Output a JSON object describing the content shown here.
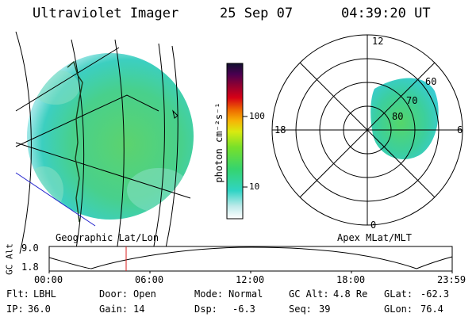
{
  "header": {
    "instrument": "Ultraviolet Imager",
    "date": "25 Sep 07",
    "time": "04:39:20 UT"
  },
  "left_panel": {
    "caption": "Geographic Lat/Lon"
  },
  "right_panel": {
    "caption": "Apex MLat/MLT",
    "mlt_labels": {
      "top": "12",
      "left": "18",
      "right": "6",
      "bottom": "0"
    },
    "lat_labels": [
      "60",
      "70",
      "80"
    ]
  },
  "colorbar": {
    "unit_label": "photon cm⁻²s⁻¹",
    "ticks": [
      "100",
      "10"
    ]
  },
  "altitude_plot": {
    "ylabel": "GC Alt",
    "y_ticks": [
      "9.0",
      "1.8"
    ],
    "x_ticks": [
      "00:00",
      "06:00",
      "12:00",
      "18:00",
      "23:59"
    ],
    "marker_color": "#d81c1c"
  },
  "status": {
    "row1": [
      {
        "label": "Flt:",
        "value": "LBHL"
      },
      {
        "label": "Door:",
        "value": "Open"
      },
      {
        "label": "Mode:",
        "value": "Normal"
      },
      {
        "label": "GC Alt:",
        "value": "4.8 Re"
      },
      {
        "label": "GLat:",
        "value": "-62.3"
      }
    ],
    "row2": [
      {
        "label": "IP:",
        "value": "36.0"
      },
      {
        "label": "Gain:",
        "value": "14"
      },
      {
        "label": "Dsp:",
        "value": "-6.3"
      },
      {
        "label": "Seq:",
        "value": "39"
      },
      {
        "label": "GLon:",
        "value": "76.4"
      }
    ]
  }
}
